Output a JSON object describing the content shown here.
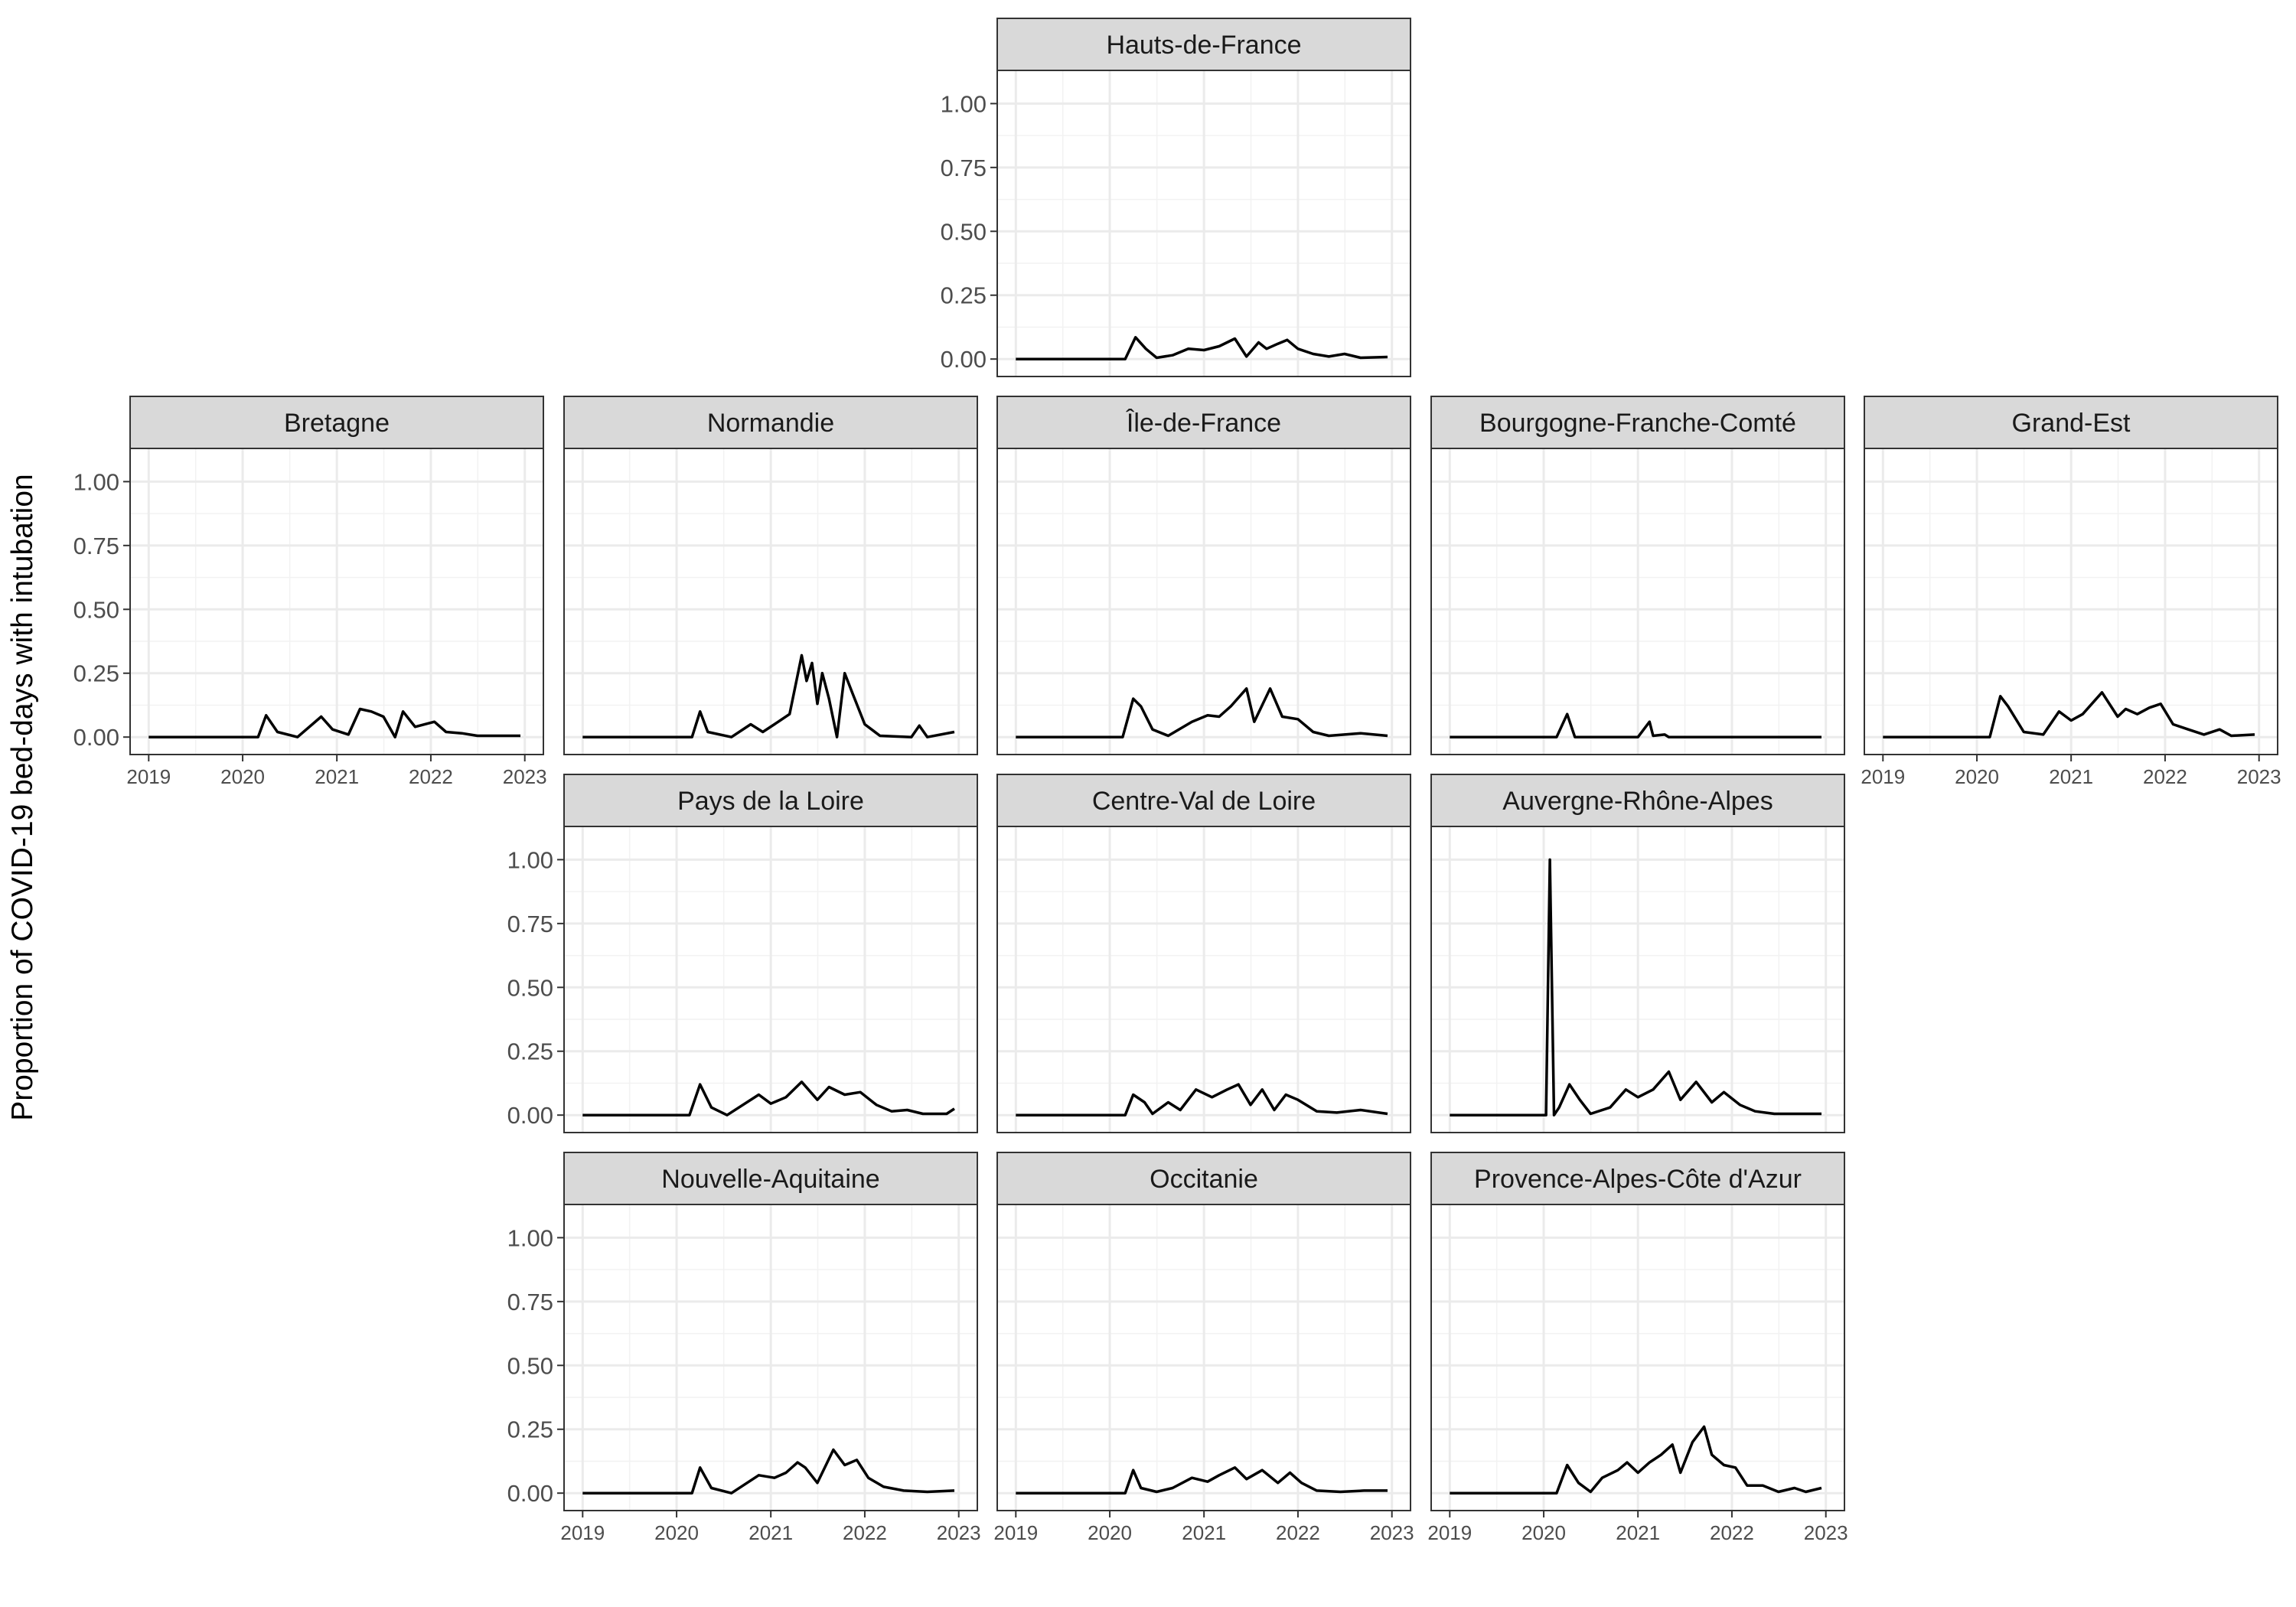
{
  "figure": {
    "ylabel": "Proportion of COVID-19 bed-days with intubation"
  },
  "chart_data": {
    "type": "line",
    "ylim": [
      0,
      1.1
    ],
    "xlim": [
      "2019-01-01",
      "2023-01-01"
    ],
    "y_ticks": [
      "0.00",
      "0.25",
      "0.50",
      "0.75",
      "1.00"
    ],
    "x_ticks": [
      "2019",
      "2020",
      "2021",
      "2022",
      "2023"
    ],
    "grid": true,
    "facets": [
      {
        "region": "Hauts-de-France",
        "points": [
          [
            "2019-01-01",
            0
          ],
          [
            "2020-03-01",
            0
          ],
          [
            "2020-04-10",
            0.085
          ],
          [
            "2020-05-20",
            0.04
          ],
          [
            "2020-07-01",
            0.005
          ],
          [
            "2020-09-01",
            0.015
          ],
          [
            "2020-11-01",
            0.04
          ],
          [
            "2021-01-01",
            0.035
          ],
          [
            "2021-03-01",
            0.05
          ],
          [
            "2021-05-01",
            0.08
          ],
          [
            "2021-06-15",
            0.01
          ],
          [
            "2021-08-01",
            0.065
          ],
          [
            "2021-09-01",
            0.04
          ],
          [
            "2021-10-15",
            0.06
          ],
          [
            "2021-11-20",
            0.075
          ],
          [
            "2022-01-01",
            0.04
          ],
          [
            "2022-03-01",
            0.02
          ],
          [
            "2022-05-01",
            0.01
          ],
          [
            "2022-07-01",
            0.02
          ],
          [
            "2022-09-01",
            0.005
          ],
          [
            "2022-12-15",
            0.008
          ]
        ]
      },
      {
        "region": "Bretagne",
        "points": [
          [
            "2019-01-01",
            0
          ],
          [
            "2020-03-01",
            0
          ],
          [
            "2020-04-01",
            0.085
          ],
          [
            "2020-05-15",
            0.02
          ],
          [
            "2020-08-01",
            0
          ],
          [
            "2020-11-01",
            0.08
          ],
          [
            "2020-12-15",
            0.03
          ],
          [
            "2021-02-15",
            0.01
          ],
          [
            "2021-04-01",
            0.11
          ],
          [
            "2021-05-15",
            0.1
          ],
          [
            "2021-07-01",
            0.08
          ],
          [
            "2021-08-15",
            0
          ],
          [
            "2021-09-15",
            0.1
          ],
          [
            "2021-11-01",
            0.04
          ],
          [
            "2022-01-15",
            0.06
          ],
          [
            "2022-03-01",
            0.02
          ],
          [
            "2022-05-01",
            0.015
          ],
          [
            "2022-07-01",
            0.005
          ],
          [
            "2022-10-01",
            0.005
          ],
          [
            "2022-12-15",
            0.005
          ]
        ]
      },
      {
        "region": "Normandie",
        "points": [
          [
            "2019-01-01",
            0
          ],
          [
            "2020-03-01",
            0
          ],
          [
            "2020-04-01",
            0.1
          ],
          [
            "2020-05-01",
            0.02
          ],
          [
            "2020-08-01",
            0
          ],
          [
            "2020-10-15",
            0.05
          ],
          [
            "2020-12-01",
            0.02
          ],
          [
            "2021-01-15",
            0.05
          ],
          [
            "2021-03-15",
            0.09
          ],
          [
            "2021-05-01",
            0.32
          ],
          [
            "2021-05-20",
            0.22
          ],
          [
            "2021-06-10",
            0.29
          ],
          [
            "2021-07-01",
            0.13
          ],
          [
            "2021-07-20",
            0.25
          ],
          [
            "2021-08-15",
            0.15
          ],
          [
            "2021-09-15",
            0
          ],
          [
            "2021-10-15",
            0.25
          ],
          [
            "2021-11-15",
            0.17
          ],
          [
            "2022-01-01",
            0.05
          ],
          [
            "2022-03-01",
            0.005
          ],
          [
            "2022-07-01",
            0
          ],
          [
            "2022-08-01",
            0.045
          ],
          [
            "2022-09-01",
            0
          ],
          [
            "2022-12-15",
            0.02
          ]
        ]
      },
      {
        "region": "Île-de-France",
        "points": [
          [
            "2019-01-01",
            0
          ],
          [
            "2020-02-20",
            0
          ],
          [
            "2020-04-01",
            0.15
          ],
          [
            "2020-05-01",
            0.12
          ],
          [
            "2020-06-15",
            0.03
          ],
          [
            "2020-08-15",
            0.005
          ],
          [
            "2020-11-15",
            0.06
          ],
          [
            "2021-01-15",
            0.085
          ],
          [
            "2021-03-01",
            0.08
          ],
          [
            "2021-04-15",
            0.12
          ],
          [
            "2021-06-15",
            0.19
          ],
          [
            "2021-07-15",
            0.06
          ],
          [
            "2021-09-15",
            0.19
          ],
          [
            "2021-11-01",
            0.08
          ],
          [
            "2022-01-01",
            0.07
          ],
          [
            "2022-03-01",
            0.02
          ],
          [
            "2022-05-01",
            0.005
          ],
          [
            "2022-07-01",
            0.01
          ],
          [
            "2022-09-01",
            0.015
          ],
          [
            "2022-12-15",
            0.005
          ]
        ]
      },
      {
        "region": "Bourgogne-Franche-Comté",
        "points": [
          [
            "2019-01-01",
            0
          ],
          [
            "2020-02-20",
            0
          ],
          [
            "2020-04-01",
            0.09
          ],
          [
            "2020-05-01",
            0
          ],
          [
            "2021-01-01",
            0
          ],
          [
            "2021-02-15",
            0.06
          ],
          [
            "2021-03-01",
            0.005
          ],
          [
            "2021-04-15",
            0.01
          ],
          [
            "2021-05-01",
            0
          ],
          [
            "2022-12-15",
            0
          ]
        ]
      },
      {
        "region": "Grand-Est",
        "points": [
          [
            "2019-01-01",
            0
          ],
          [
            "2020-02-20",
            0
          ],
          [
            "2020-04-01",
            0.16
          ],
          [
            "2020-05-01",
            0.12
          ],
          [
            "2020-07-01",
            0.02
          ],
          [
            "2020-09-15",
            0.01
          ],
          [
            "2020-11-15",
            0.1
          ],
          [
            "2021-01-01",
            0.065
          ],
          [
            "2021-02-15",
            0.09
          ],
          [
            "2021-05-01",
            0.175
          ],
          [
            "2021-07-01",
            0.08
          ],
          [
            "2021-08-01",
            0.11
          ],
          [
            "2021-09-15",
            0.09
          ],
          [
            "2021-11-01",
            0.115
          ],
          [
            "2021-12-15",
            0.13
          ],
          [
            "2022-02-01",
            0.05
          ],
          [
            "2022-04-01",
            0.03
          ],
          [
            "2022-06-01",
            0.01
          ],
          [
            "2022-08-01",
            0.03
          ],
          [
            "2022-09-15",
            0.005
          ],
          [
            "2022-12-15",
            0.01
          ]
        ]
      },
      {
        "region": "Pays de la Loire",
        "points": [
          [
            "2019-01-01",
            0
          ],
          [
            "2020-02-20",
            0
          ],
          [
            "2020-04-01",
            0.12
          ],
          [
            "2020-05-15",
            0.03
          ],
          [
            "2020-07-15",
            0
          ],
          [
            "2020-11-15",
            0.08
          ],
          [
            "2021-01-01",
            0.045
          ],
          [
            "2021-03-01",
            0.07
          ],
          [
            "2021-05-01",
            0.13
          ],
          [
            "2021-07-01",
            0.06
          ],
          [
            "2021-08-15",
            0.11
          ],
          [
            "2021-10-15",
            0.08
          ],
          [
            "2021-12-15",
            0.09
          ],
          [
            "2022-02-15",
            0.04
          ],
          [
            "2022-04-15",
            0.015
          ],
          [
            "2022-06-15",
            0.02
          ],
          [
            "2022-08-15",
            0.005
          ],
          [
            "2022-11-15",
            0.005
          ],
          [
            "2022-12-15",
            0.025
          ]
        ]
      },
      {
        "region": "Centre-Val de Loire",
        "points": [
          [
            "2019-01-01",
            0
          ],
          [
            "2020-03-01",
            0
          ],
          [
            "2020-04-01",
            0.08
          ],
          [
            "2020-05-15",
            0.05
          ],
          [
            "2020-06-15",
            0.005
          ],
          [
            "2020-08-15",
            0.05
          ],
          [
            "2020-10-01",
            0.02
          ],
          [
            "2020-12-01",
            0.1
          ],
          [
            "2021-02-01",
            0.07
          ],
          [
            "2021-04-01",
            0.1
          ],
          [
            "2021-05-15",
            0.12
          ],
          [
            "2021-07-01",
            0.04
          ],
          [
            "2021-08-15",
            0.1
          ],
          [
            "2021-10-01",
            0.02
          ],
          [
            "2021-11-15",
            0.08
          ],
          [
            "2022-01-01",
            0.06
          ],
          [
            "2022-03-15",
            0.015
          ],
          [
            "2022-06-01",
            0.01
          ],
          [
            "2022-09-01",
            0.02
          ],
          [
            "2022-12-15",
            0.005
          ]
        ]
      },
      {
        "region": "Auvergne-Rhône-Alpes",
        "points": [
          [
            "2019-01-01",
            0
          ],
          [
            "2020-01-10",
            0
          ],
          [
            "2020-01-25",
            1.0
          ],
          [
            "2020-02-10",
            0
          ],
          [
            "2020-03-01",
            0.03
          ],
          [
            "2020-04-10",
            0.12
          ],
          [
            "2020-05-20",
            0.06
          ],
          [
            "2020-07-01",
            0.005
          ],
          [
            "2020-09-15",
            0.03
          ],
          [
            "2020-11-15",
            0.1
          ],
          [
            "2021-01-01",
            0.07
          ],
          [
            "2021-03-01",
            0.1
          ],
          [
            "2021-05-01",
            0.17
          ],
          [
            "2021-06-15",
            0.06
          ],
          [
            "2021-08-15",
            0.13
          ],
          [
            "2021-10-15",
            0.05
          ],
          [
            "2021-12-01",
            0.09
          ],
          [
            "2022-02-01",
            0.04
          ],
          [
            "2022-04-01",
            0.015
          ],
          [
            "2022-06-15",
            0.005
          ],
          [
            "2022-12-15",
            0.005
          ]
        ]
      },
      {
        "region": "Nouvelle-Aquitaine",
        "points": [
          [
            "2019-01-01",
            0
          ],
          [
            "2020-03-01",
            0
          ],
          [
            "2020-04-01",
            0.1
          ],
          [
            "2020-05-15",
            0.02
          ],
          [
            "2020-08-01",
            0
          ],
          [
            "2020-11-15",
            0.07
          ],
          [
            "2021-01-15",
            0.06
          ],
          [
            "2021-03-01",
            0.08
          ],
          [
            "2021-04-15",
            0.12
          ],
          [
            "2021-05-15",
            0.1
          ],
          [
            "2021-07-01",
            0.04
          ],
          [
            "2021-09-01",
            0.17
          ],
          [
            "2021-10-15",
            0.11
          ],
          [
            "2021-12-01",
            0.13
          ],
          [
            "2022-01-15",
            0.06
          ],
          [
            "2022-03-15",
            0.025
          ],
          [
            "2022-06-01",
            0.01
          ],
          [
            "2022-09-01",
            0.005
          ],
          [
            "2022-12-15",
            0.01
          ]
        ]
      },
      {
        "region": "Occitanie",
        "points": [
          [
            "2019-01-01",
            0
          ],
          [
            "2020-03-01",
            0
          ],
          [
            "2020-04-01",
            0.09
          ],
          [
            "2020-05-01",
            0.02
          ],
          [
            "2020-07-01",
            0.005
          ],
          [
            "2020-09-01",
            0.02
          ],
          [
            "2020-11-15",
            0.06
          ],
          [
            "2021-01-15",
            0.045
          ],
          [
            "2021-03-01",
            0.07
          ],
          [
            "2021-05-01",
            0.1
          ],
          [
            "2021-06-15",
            0.055
          ],
          [
            "2021-08-15",
            0.09
          ],
          [
            "2021-10-15",
            0.04
          ],
          [
            "2021-12-01",
            0.08
          ],
          [
            "2022-01-15",
            0.04
          ],
          [
            "2022-03-15",
            0.01
          ],
          [
            "2022-06-15",
            0.005
          ],
          [
            "2022-09-15",
            0.01
          ],
          [
            "2022-12-15",
            0.01
          ]
        ]
      },
      {
        "region": "Provence-Alpes-Côte d'Azur",
        "points": [
          [
            "2019-01-01",
            0
          ],
          [
            "2020-02-20",
            0
          ],
          [
            "2020-04-01",
            0.11
          ],
          [
            "2020-05-15",
            0.04
          ],
          [
            "2020-07-01",
            0.005
          ],
          [
            "2020-08-15",
            0.06
          ],
          [
            "2020-10-15",
            0.09
          ],
          [
            "2020-11-20",
            0.12
          ],
          [
            "2021-01-01",
            0.08
          ],
          [
            "2021-02-15",
            0.12
          ],
          [
            "2021-04-01",
            0.15
          ],
          [
            "2021-05-15",
            0.19
          ],
          [
            "2021-06-15",
            0.08
          ],
          [
            "2021-08-01",
            0.2
          ],
          [
            "2021-09-15",
            0.26
          ],
          [
            "2021-10-15",
            0.15
          ],
          [
            "2021-12-01",
            0.11
          ],
          [
            "2022-01-15",
            0.1
          ],
          [
            "2022-03-01",
            0.03
          ],
          [
            "2022-05-01",
            0.03
          ],
          [
            "2022-07-01",
            0.005
          ],
          [
            "2022-09-01",
            0.02
          ],
          [
            "2022-10-15",
            0.005
          ],
          [
            "2022-12-15",
            0.02
          ]
        ]
      }
    ]
  }
}
